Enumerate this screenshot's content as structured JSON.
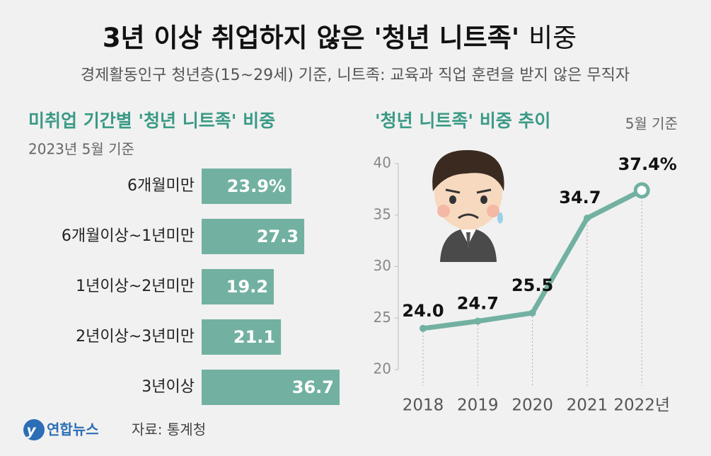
{
  "header": {
    "title": "3년 이상 취업하지 않은 '청년 니트족'",
    "title_light": "비중",
    "subtitle": "경제활동인구 청년층(15~29세) 기준, 니트족: 교육과 직업 훈련을 받지 않은 무직자"
  },
  "chart_data": [
    {
      "type": "hbar",
      "title": "미취업 기간별 '청년 니트족' 비중",
      "subtitle": "2023년 5월 기준",
      "categories": [
        "6개월미만",
        "6개월이상~1년미만",
        "1년이상~2년미만",
        "2년이상~3년미만",
        "3년이상"
      ],
      "values": [
        23.9,
        27.3,
        19.2,
        21.1,
        36.7
      ],
      "value_labels": [
        "23.9%",
        "27.3",
        "19.2",
        "21.1",
        "36.7"
      ],
      "color": "#72b1a1"
    },
    {
      "type": "line",
      "title": "'청년 니트족' 비중 추이",
      "subtitle": "5월 기준",
      "categories": [
        "2018",
        "2019",
        "2020",
        "2021",
        "2022년"
      ],
      "values": [
        24.0,
        24.7,
        25.5,
        34.7,
        37.4
      ],
      "value_labels": [
        "24.0",
        "24.7",
        "25.5",
        "34.7",
        "37.4%"
      ],
      "color": "#72b1a1",
      "ylim": [
        20,
        40
      ],
      "yticks": [
        20,
        25,
        30,
        35,
        40
      ]
    }
  ],
  "footer": {
    "logo": "연합뉴스",
    "source": "자료: 통계청"
  }
}
